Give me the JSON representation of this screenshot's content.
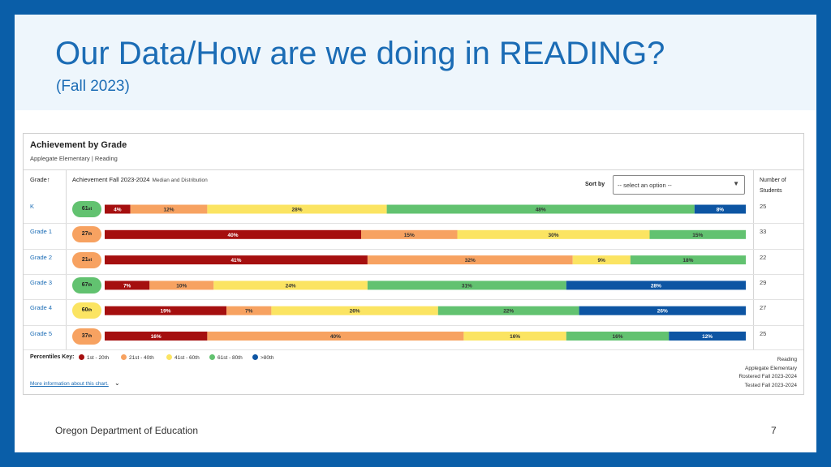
{
  "slide": {
    "title": "Our Data/How are we doing in READING?",
    "subtitle": "(Fall 2023)",
    "footer_org": "Oregon Department of Education",
    "page_number": "7"
  },
  "panel": {
    "title": "Achievement by Grade",
    "subtitle": "Applegate Elementary | Reading",
    "col_grade": "Grade",
    "col_achievement": "Achievement Fall 2023-2024",
    "col_achievement_sub": "Median and Distribution",
    "sort_label": "Sort by",
    "sort_placeholder": "-- select an option --",
    "col_count_line1": "Number of",
    "col_count_line2": "Students",
    "key_label": "Percentiles Key:",
    "more_info": "More information about this chart.",
    "meta_lines": [
      "Reading",
      "Applegate Elementary",
      "Rostered Fall 2023-2024",
      "Tested Fall 2023-2024"
    ]
  },
  "key": [
    {
      "label": "1st - 20th",
      "color": "#a50f0f"
    },
    {
      "label": "21st - 40th",
      "color": "#f7a261"
    },
    {
      "label": "41st - 60th",
      "color": "#fbe462"
    },
    {
      "label": "61st - 80th",
      "color": "#62c270"
    },
    {
      "label": ">80th",
      "color": "#0d55a3"
    }
  ],
  "chart_data": {
    "type": "bar",
    "stacked": true,
    "orientation": "horizontal",
    "title": "Achievement by Grade",
    "categories": [
      "K",
      "Grade 1",
      "Grade 2",
      "Grade 3",
      "Grade 4",
      "Grade 5"
    ],
    "medians": [
      "61st",
      "27th",
      "21st",
      "67th",
      "60th",
      "37th"
    ],
    "median_colors": [
      "#62c270",
      "#f7a261",
      "#f7a261",
      "#62c270",
      "#fbe462",
      "#f7a261"
    ],
    "students": [
      25,
      33,
      22,
      29,
      27,
      25
    ],
    "series": [
      {
        "name": "1st - 20th",
        "color": "#a50f0f",
        "values": [
          4,
          40,
          41,
          7,
          19,
          16
        ]
      },
      {
        "name": "21st - 40th",
        "color": "#f7a261",
        "values": [
          12,
          15,
          32,
          10,
          7,
          40
        ]
      },
      {
        "name": "41st - 60th",
        "color": "#fbe462",
        "values": [
          28,
          30,
          9,
          24,
          26,
          16
        ]
      },
      {
        "name": "61st - 80th",
        "color": "#62c270",
        "values": [
          48,
          15,
          18,
          31,
          22,
          16
        ]
      },
      {
        "name": ">80th",
        "color": "#0d55a3",
        "values": [
          8,
          0,
          0,
          28,
          26,
          12
        ]
      }
    ]
  }
}
